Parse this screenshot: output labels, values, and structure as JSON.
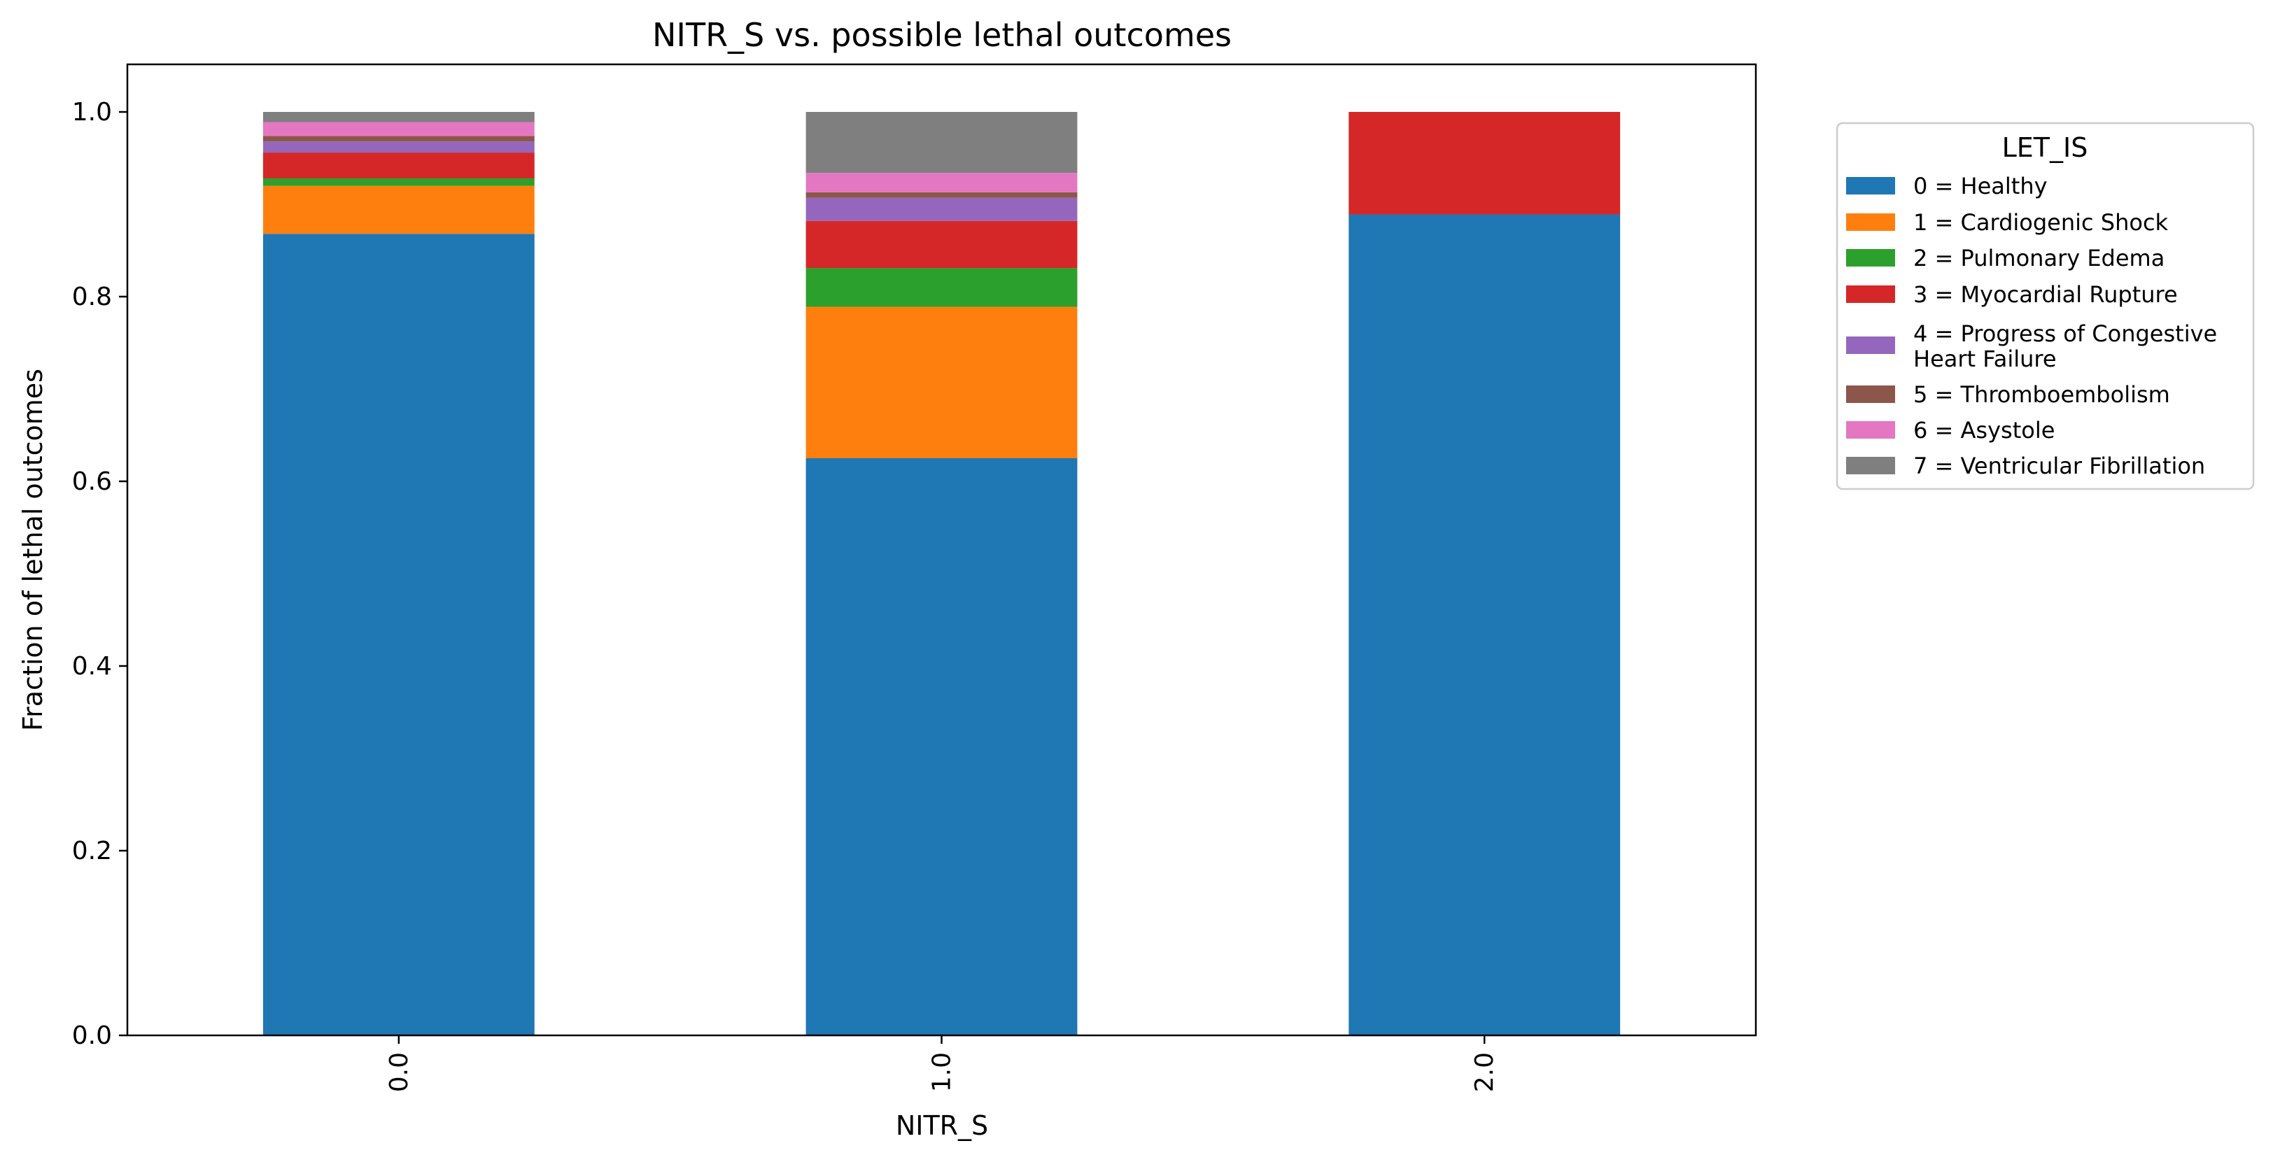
{
  "chart_data": {
    "type": "bar",
    "stacked": true,
    "title": "NITR_S vs. possible lethal outcomes",
    "xlabel": "NITR_S",
    "ylabel": "Fraction of lethal outcomes",
    "categories": [
      "0.0",
      "1.0",
      "2.0"
    ],
    "ylim": [
      0,
      1.05
    ],
    "yticks": [
      "0.0",
      "0.2",
      "0.4",
      "0.6",
      "0.8",
      "1.0"
    ],
    "grid": false,
    "legend": {
      "title": "LET_IS",
      "placement": "right"
    },
    "series": [
      {
        "name": "0 = Healthy",
        "color": "#1f77b4",
        "values": [
          0.868,
          0.625,
          0.889
        ]
      },
      {
        "name": "1 = Cardiogenic Shock",
        "color": "#ff7f0e",
        "values": [
          0.052,
          0.164,
          0.0
        ]
      },
      {
        "name": "2 = Pulmonary Edema",
        "color": "#2ca02c",
        "values": [
          0.008,
          0.042,
          0.0
        ]
      },
      {
        "name": "3 = Myocardial Rupture",
        "color": "#d62728",
        "values": [
          0.028,
          0.051,
          0.111
        ]
      },
      {
        "name": "4 = Progress of Congestive Heart Failure",
        "color": "#9467bd",
        "values": [
          0.012,
          0.025,
          0.0
        ]
      },
      {
        "name": "5 = Thromboembolism",
        "color": "#8c564b",
        "values": [
          0.006,
          0.006,
          0.0
        ]
      },
      {
        "name": "6 = Asystole",
        "color": "#e377c2",
        "values": [
          0.015,
          0.021,
          0.0
        ]
      },
      {
        "name": "7 = Ventricular Fibrillation",
        "color": "#7f7f7f",
        "values": [
          0.011,
          0.066,
          0.0
        ]
      }
    ]
  }
}
